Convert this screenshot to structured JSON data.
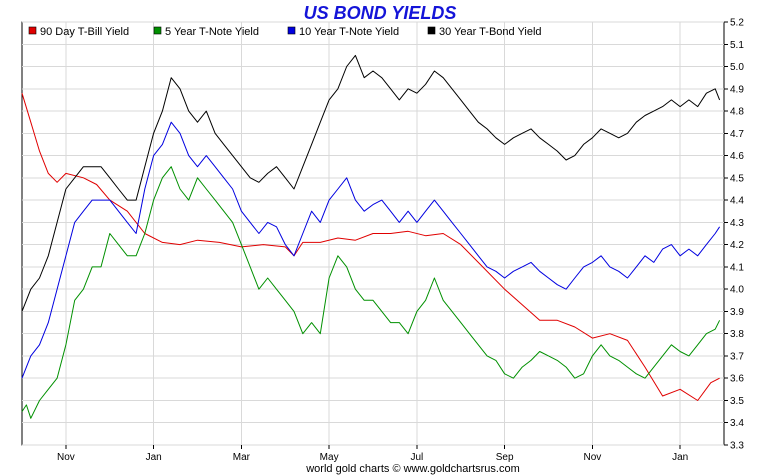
{
  "chart_data": {
    "type": "line",
    "title": "US BOND YIELDS",
    "footer": "world gold charts © www.goldchartsrus.com",
    "ylim": [
      3.3,
      5.2
    ],
    "y_ticks": [
      "3.3",
      "3.4",
      "3.5",
      "3.6",
      "3.7",
      "3.8",
      "3.9",
      "4.0",
      "4.1",
      "4.2",
      "4.3",
      "4.4",
      "4.5",
      "4.6",
      "4.7",
      "4.8",
      "4.9",
      "5.0",
      "5.1",
      "5.2"
    ],
    "x_ticks": [
      {
        "label": "Nov",
        "month": 1
      },
      {
        "label": "Jan",
        "month": 3
      },
      {
        "label": "Mar",
        "month": 5
      },
      {
        "label": "May",
        "month": 7
      },
      {
        "label": "Jul",
        "month": 9
      },
      {
        "label": "Sep",
        "month": 11
      },
      {
        "label": "Nov",
        "month": 13
      },
      {
        "label": "Jan",
        "month": 15
      }
    ],
    "xlim": [
      0,
      16.0
    ],
    "grid": true,
    "legend_position": "top",
    "series": [
      {
        "name": "90 Day T-Bill Yield",
        "color": "#e00000",
        "points": [
          [
            0.0,
            4.88
          ],
          [
            0.2,
            4.75
          ],
          [
            0.4,
            4.62
          ],
          [
            0.6,
            4.52
          ],
          [
            0.8,
            4.48
          ],
          [
            1.0,
            4.52
          ],
          [
            1.4,
            4.5
          ],
          [
            1.7,
            4.47
          ],
          [
            2.0,
            4.4
          ],
          [
            2.4,
            4.35
          ],
          [
            2.8,
            4.25
          ],
          [
            3.2,
            4.21
          ],
          [
            3.6,
            4.2
          ],
          [
            4.0,
            4.22
          ],
          [
            4.5,
            4.21
          ],
          [
            5.0,
            4.19
          ],
          [
            5.5,
            4.2
          ],
          [
            6.0,
            4.19
          ],
          [
            6.2,
            4.15
          ],
          [
            6.4,
            4.21
          ],
          [
            6.8,
            4.21
          ],
          [
            7.2,
            4.23
          ],
          [
            7.6,
            4.22
          ],
          [
            8.0,
            4.25
          ],
          [
            8.4,
            4.25
          ],
          [
            8.8,
            4.26
          ],
          [
            9.2,
            4.24
          ],
          [
            9.6,
            4.25
          ],
          [
            10.0,
            4.2
          ],
          [
            10.5,
            4.1
          ],
          [
            11.0,
            4.0
          ],
          [
            11.4,
            3.93
          ],
          [
            11.8,
            3.86
          ],
          [
            12.2,
            3.86
          ],
          [
            12.6,
            3.83
          ],
          [
            13.0,
            3.78
          ],
          [
            13.4,
            3.8
          ],
          [
            13.8,
            3.77
          ],
          [
            14.2,
            3.65
          ],
          [
            14.6,
            3.52
          ],
          [
            15.0,
            3.55
          ],
          [
            15.4,
            3.5
          ],
          [
            15.7,
            3.58
          ],
          [
            15.9,
            3.6
          ]
        ]
      },
      {
        "name": "5 Year T-Note Yield",
        "color": "#009000",
        "points": [
          [
            0.0,
            3.45
          ],
          [
            0.1,
            3.48
          ],
          [
            0.2,
            3.42
          ],
          [
            0.4,
            3.5
          ],
          [
            0.6,
            3.55
          ],
          [
            0.8,
            3.6
          ],
          [
            1.0,
            3.75
          ],
          [
            1.2,
            3.95
          ],
          [
            1.4,
            4.0
          ],
          [
            1.6,
            4.1
          ],
          [
            1.8,
            4.1
          ],
          [
            2.0,
            4.25
          ],
          [
            2.2,
            4.2
          ],
          [
            2.4,
            4.15
          ],
          [
            2.6,
            4.15
          ],
          [
            2.8,
            4.25
          ],
          [
            3.0,
            4.4
          ],
          [
            3.2,
            4.5
          ],
          [
            3.4,
            4.55
          ],
          [
            3.6,
            4.45
          ],
          [
            3.8,
            4.4
          ],
          [
            4.0,
            4.5
          ],
          [
            4.2,
            4.45
          ],
          [
            4.4,
            4.4
          ],
          [
            4.6,
            4.35
          ],
          [
            4.8,
            4.3
          ],
          [
            5.0,
            4.2
          ],
          [
            5.2,
            4.1
          ],
          [
            5.4,
            4.0
          ],
          [
            5.6,
            4.05
          ],
          [
            5.8,
            4.0
          ],
          [
            6.0,
            3.95
          ],
          [
            6.2,
            3.9
          ],
          [
            6.4,
            3.8
          ],
          [
            6.6,
            3.85
          ],
          [
            6.8,
            3.8
          ],
          [
            7.0,
            4.05
          ],
          [
            7.2,
            4.15
          ],
          [
            7.4,
            4.1
          ],
          [
            7.6,
            4.0
          ],
          [
            7.8,
            3.95
          ],
          [
            8.0,
            3.95
          ],
          [
            8.2,
            3.9
          ],
          [
            8.4,
            3.85
          ],
          [
            8.6,
            3.85
          ],
          [
            8.8,
            3.8
          ],
          [
            9.0,
            3.9
          ],
          [
            9.2,
            3.95
          ],
          [
            9.4,
            4.05
          ],
          [
            9.6,
            3.95
          ],
          [
            9.8,
            3.9
          ],
          [
            10.0,
            3.85
          ],
          [
            10.2,
            3.8
          ],
          [
            10.4,
            3.75
          ],
          [
            10.6,
            3.7
          ],
          [
            10.8,
            3.68
          ],
          [
            11.0,
            3.62
          ],
          [
            11.2,
            3.6
          ],
          [
            11.4,
            3.65
          ],
          [
            11.6,
            3.68
          ],
          [
            11.8,
            3.72
          ],
          [
            12.0,
            3.7
          ],
          [
            12.2,
            3.68
          ],
          [
            12.4,
            3.65
          ],
          [
            12.6,
            3.6
          ],
          [
            12.8,
            3.62
          ],
          [
            13.0,
            3.7
          ],
          [
            13.2,
            3.75
          ],
          [
            13.4,
            3.7
          ],
          [
            13.6,
            3.68
          ],
          [
            13.8,
            3.65
          ],
          [
            14.0,
            3.62
          ],
          [
            14.2,
            3.6
          ],
          [
            14.4,
            3.65
          ],
          [
            14.6,
            3.7
          ],
          [
            14.8,
            3.75
          ],
          [
            15.0,
            3.72
          ],
          [
            15.2,
            3.7
          ],
          [
            15.4,
            3.75
          ],
          [
            15.6,
            3.8
          ],
          [
            15.8,
            3.82
          ],
          [
            15.9,
            3.86
          ]
        ]
      },
      {
        "name": "10 Year T-Note Yield",
        "color": "#0000e0",
        "points": [
          [
            0.0,
            3.6
          ],
          [
            0.1,
            3.65
          ],
          [
            0.2,
            3.7
          ],
          [
            0.4,
            3.75
          ],
          [
            0.6,
            3.85
          ],
          [
            0.8,
            4.0
          ],
          [
            1.0,
            4.15
          ],
          [
            1.2,
            4.3
          ],
          [
            1.4,
            4.35
          ],
          [
            1.6,
            4.4
          ],
          [
            1.8,
            4.4
          ],
          [
            2.0,
            4.4
          ],
          [
            2.2,
            4.35
          ],
          [
            2.4,
            4.3
          ],
          [
            2.6,
            4.25
          ],
          [
            2.8,
            4.45
          ],
          [
            3.0,
            4.6
          ],
          [
            3.2,
            4.65
          ],
          [
            3.4,
            4.75
          ],
          [
            3.6,
            4.7
          ],
          [
            3.8,
            4.6
          ],
          [
            4.0,
            4.55
          ],
          [
            4.2,
            4.6
          ],
          [
            4.4,
            4.55
          ],
          [
            4.6,
            4.5
          ],
          [
            4.8,
            4.45
          ],
          [
            5.0,
            4.35
          ],
          [
            5.2,
            4.3
          ],
          [
            5.4,
            4.25
          ],
          [
            5.6,
            4.3
          ],
          [
            5.8,
            4.28
          ],
          [
            6.0,
            4.2
          ],
          [
            6.2,
            4.15
          ],
          [
            6.4,
            4.25
          ],
          [
            6.6,
            4.35
          ],
          [
            6.8,
            4.3
          ],
          [
            7.0,
            4.4
          ],
          [
            7.2,
            4.45
          ],
          [
            7.4,
            4.5
          ],
          [
            7.6,
            4.4
          ],
          [
            7.8,
            4.35
          ],
          [
            8.0,
            4.38
          ],
          [
            8.2,
            4.4
          ],
          [
            8.4,
            4.35
          ],
          [
            8.6,
            4.3
          ],
          [
            8.8,
            4.35
          ],
          [
            9.0,
            4.3
          ],
          [
            9.2,
            4.35
          ],
          [
            9.4,
            4.4
          ],
          [
            9.6,
            4.35
          ],
          [
            9.8,
            4.3
          ],
          [
            10.0,
            4.25
          ],
          [
            10.2,
            4.2
          ],
          [
            10.4,
            4.15
          ],
          [
            10.6,
            4.1
          ],
          [
            10.8,
            4.08
          ],
          [
            11.0,
            4.05
          ],
          [
            11.2,
            4.08
          ],
          [
            11.4,
            4.1
          ],
          [
            11.6,
            4.12
          ],
          [
            11.8,
            4.08
          ],
          [
            12.0,
            4.05
          ],
          [
            12.2,
            4.02
          ],
          [
            12.4,
            4.0
          ],
          [
            12.6,
            4.05
          ],
          [
            12.8,
            4.1
          ],
          [
            13.0,
            4.12
          ],
          [
            13.2,
            4.15
          ],
          [
            13.4,
            4.1
          ],
          [
            13.6,
            4.08
          ],
          [
            13.8,
            4.05
          ],
          [
            14.0,
            4.1
          ],
          [
            14.2,
            4.15
          ],
          [
            14.4,
            4.12
          ],
          [
            14.6,
            4.18
          ],
          [
            14.8,
            4.2
          ],
          [
            15.0,
            4.15
          ],
          [
            15.2,
            4.18
          ],
          [
            15.4,
            4.15
          ],
          [
            15.6,
            4.2
          ],
          [
            15.8,
            4.25
          ],
          [
            15.9,
            4.28
          ]
        ]
      },
      {
        "name": "30 Year T-Bond Yield",
        "color": "#000000",
        "points": [
          [
            0.0,
            3.9
          ],
          [
            0.1,
            3.95
          ],
          [
            0.2,
            4.0
          ],
          [
            0.4,
            4.05
          ],
          [
            0.6,
            4.15
          ],
          [
            0.8,
            4.3
          ],
          [
            1.0,
            4.45
          ],
          [
            1.2,
            4.5
          ],
          [
            1.4,
            4.55
          ],
          [
            1.6,
            4.55
          ],
          [
            1.8,
            4.55
          ],
          [
            2.0,
            4.5
          ],
          [
            2.2,
            4.45
          ],
          [
            2.4,
            4.4
          ],
          [
            2.6,
            4.4
          ],
          [
            2.8,
            4.55
          ],
          [
            3.0,
            4.7
          ],
          [
            3.2,
            4.8
          ],
          [
            3.4,
            4.95
          ],
          [
            3.6,
            4.9
          ],
          [
            3.8,
            4.8
          ],
          [
            4.0,
            4.75
          ],
          [
            4.2,
            4.8
          ],
          [
            4.4,
            4.7
          ],
          [
            4.6,
            4.65
          ],
          [
            4.8,
            4.6
          ],
          [
            5.0,
            4.55
          ],
          [
            5.2,
            4.5
          ],
          [
            5.4,
            4.48
          ],
          [
            5.6,
            4.52
          ],
          [
            5.8,
            4.55
          ],
          [
            6.0,
            4.5
          ],
          [
            6.2,
            4.45
          ],
          [
            6.4,
            4.55
          ],
          [
            6.6,
            4.65
          ],
          [
            6.8,
            4.75
          ],
          [
            7.0,
            4.85
          ],
          [
            7.2,
            4.9
          ],
          [
            7.4,
            5.0
          ],
          [
            7.6,
            5.05
          ],
          [
            7.8,
            4.95
          ],
          [
            8.0,
            4.98
          ],
          [
            8.2,
            4.95
          ],
          [
            8.4,
            4.9
          ],
          [
            8.6,
            4.85
          ],
          [
            8.8,
            4.9
          ],
          [
            9.0,
            4.88
          ],
          [
            9.2,
            4.92
          ],
          [
            9.4,
            4.98
          ],
          [
            9.6,
            4.95
          ],
          [
            9.8,
            4.9
          ],
          [
            10.0,
            4.85
          ],
          [
            10.2,
            4.8
          ],
          [
            10.4,
            4.75
          ],
          [
            10.6,
            4.72
          ],
          [
            10.8,
            4.68
          ],
          [
            11.0,
            4.65
          ],
          [
            11.2,
            4.68
          ],
          [
            11.4,
            4.7
          ],
          [
            11.6,
            4.72
          ],
          [
            11.8,
            4.68
          ],
          [
            12.0,
            4.65
          ],
          [
            12.2,
            4.62
          ],
          [
            12.4,
            4.58
          ],
          [
            12.6,
            4.6
          ],
          [
            12.8,
            4.65
          ],
          [
            13.0,
            4.68
          ],
          [
            13.2,
            4.72
          ],
          [
            13.4,
            4.7
          ],
          [
            13.6,
            4.68
          ],
          [
            13.8,
            4.7
          ],
          [
            14.0,
            4.75
          ],
          [
            14.2,
            4.78
          ],
          [
            14.4,
            4.8
          ],
          [
            14.6,
            4.82
          ],
          [
            14.8,
            4.85
          ],
          [
            15.0,
            4.82
          ],
          [
            15.2,
            4.85
          ],
          [
            15.4,
            4.82
          ],
          [
            15.6,
            4.88
          ],
          [
            15.8,
            4.9
          ],
          [
            15.9,
            4.85
          ]
        ]
      }
    ]
  }
}
